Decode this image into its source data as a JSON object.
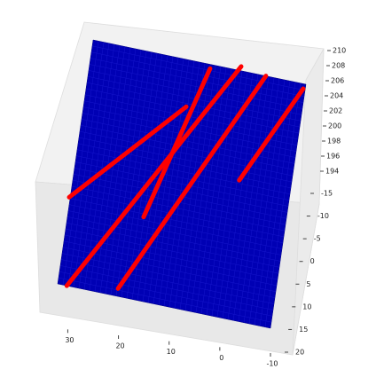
{
  "chart_data": {
    "type": "surface3d",
    "surface_color": "#0000b4",
    "xlim": [
      -10,
      32
    ],
    "ylim": [
      -15,
      20
    ],
    "zlim": [
      194,
      210
    ],
    "xticks": [
      30,
      20,
      10,
      0,
      -10
    ],
    "yticks": [
      -15,
      -10,
      -5,
      0,
      5,
      10,
      15,
      20
    ],
    "zticks": [
      194,
      196,
      198,
      200,
      202,
      204,
      206,
      208,
      210
    ],
    "series": [
      {
        "color": "#ff0000",
        "x": [
          30.2,
          2.9
        ],
        "y": [
          20,
          -15.6
        ]
      },
      {
        "color": "#ff0000",
        "x": [
          20.3,
          -2.1
        ],
        "y": [
          18.9,
          -15
        ]
      },
      {
        "color": "#ff0000",
        "x": [
          17.4,
          8.8
        ],
        "y": [
          8.2,
          -14.4
        ]
      },
      {
        "color": "#ff0000",
        "x": [
          0.1,
          -9.6
        ],
        "y": [
          0.3,
          -14.3
        ]
      },
      {
        "color": "#ff0000",
        "x": [
          32.2,
          12.3
        ],
        "y": [
          7.6,
          -8.4
        ]
      }
    ]
  }
}
